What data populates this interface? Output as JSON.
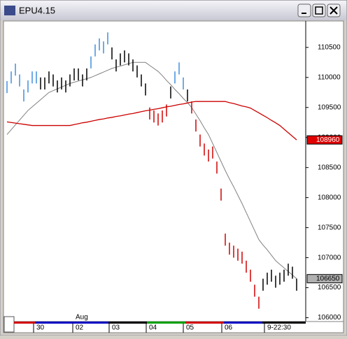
{
  "window": {
    "title": "EPU4.15"
  },
  "chart_data": {
    "type": "ohlc",
    "ylim": [
      105960,
      110940
    ],
    "yticks": [
      106000,
      106500,
      107000,
      107500,
      108000,
      108500,
      109000,
      109500,
      110000,
      110500
    ],
    "time_labels": [
      "30",
      "02",
      "03",
      "04",
      "05",
      "06",
      "9-22:30"
    ],
    "month_label": "Aug",
    "high": [
      109940,
      110100,
      110230,
      110050,
      109800,
      109950,
      110100,
      110100,
      110000,
      110000,
      110100,
      110050,
      109950,
      110000,
      109950,
      110050,
      110150,
      110150,
      110050,
      110150,
      110350,
      110550,
      110650,
      110600,
      110750,
      110500,
      110300,
      110400,
      110450,
      110400,
      110300,
      110200,
      110050,
      109900,
      109500,
      109450,
      109400,
      109450,
      109550,
      109850,
      110100,
      110250,
      110000,
      109800,
      109600,
      109300,
      109050,
      108900,
      108800,
      108850,
      108600,
      108150,
      107400,
      107250,
      107200,
      107150,
      107100,
      106950,
      106800,
      106550,
      106350,
      106650,
      106750,
      106800,
      106700,
      106750,
      106800,
      106900,
      106850,
      106650
    ],
    "low": [
      109740,
      109900,
      110030,
      109850,
      109600,
      109750,
      109900,
      109900,
      109800,
      109800,
      109900,
      109850,
      109750,
      109800,
      109750,
      109850,
      109950,
      109950,
      109850,
      109950,
      110150,
      110350,
      110450,
      110400,
      110550,
      110300,
      110100,
      110200,
      110250,
      110200,
      110100,
      110000,
      109850,
      109700,
      109300,
      109250,
      109200,
      109250,
      109350,
      109650,
      109900,
      110050,
      109800,
      109600,
      109400,
      109100,
      108850,
      108700,
      108600,
      108650,
      108400,
      107950,
      107200,
      107050,
      107000,
      106950,
      106900,
      106750,
      106600,
      106350,
      106150,
      106450,
      106550,
      106600,
      106500,
      106550,
      106600,
      106700,
      106650,
      106450
    ],
    "bar_colors": [
      "#3f8fdf",
      "#3f8fdf",
      "#3f8fdf",
      "#3f8fdf",
      "#3f8fdf",
      "#3f8fdf",
      "#3f8fdf",
      "#3f8fdf",
      "#000000",
      "#000000",
      "#000000",
      "#000000",
      "#000000",
      "#000000",
      "#000000",
      "#000000",
      "#000000",
      "#000000",
      "#000000",
      "#000000",
      "#3f8fdf",
      "#3f8fdf",
      "#3f8fdf",
      "#3f8fdf",
      "#3f8fdf",
      "#000000",
      "#000000",
      "#000000",
      "#000000",
      "#000000",
      "#000000",
      "#000000",
      "#000000",
      "#000000",
      "#d00000",
      "#d00000",
      "#d00000",
      "#d00000",
      "#d00000",
      "#000000",
      "#3f8fdf",
      "#3f8fdf",
      "#3f8fdf",
      "#000000",
      "#d00000",
      "#d00000",
      "#d00000",
      "#d00000",
      "#d00000",
      "#d00000",
      "#d00000",
      "#d00000",
      "#d00000",
      "#d00000",
      "#d00000",
      "#d00000",
      "#d00000",
      "#d00000",
      "#d00000",
      "#d00000",
      "#d00000",
      "#000000",
      "#000000",
      "#000000",
      "#000000",
      "#000000",
      "#000000",
      "#000000",
      "#000000",
      "#000000"
    ],
    "lines": [
      {
        "color": "#808080",
        "values": [
          109050,
          109130,
          109210,
          109290,
          109370,
          109450,
          109510,
          109570,
          109630,
          109690,
          109750,
          109780,
          109810,
          109840,
          109870,
          109900,
          109920,
          109940,
          109960,
          109980,
          110000,
          110030,
          110060,
          110090,
          110120,
          110150,
          110170,
          110190,
          110210,
          110230,
          110250,
          110250,
          110250,
          110250,
          110200,
          110150,
          110100,
          110030,
          109950,
          109880,
          109800,
          109730,
          109650,
          109580,
          109500,
          109390,
          109280,
          109160,
          109050,
          108900,
          108750,
          108600,
          108450,
          108310,
          108180,
          108040,
          107900,
          107750,
          107600,
          107450,
          107300,
          107210,
          107130,
          107040,
          106950,
          106890,
          106830,
          106770,
          106710,
          106650
        ]
      },
      {
        "color": "#cc0000",
        "values": [
          109260,
          109250,
          109240,
          109230,
          109220,
          109210,
          109200,
          109200,
          109200,
          109200,
          109200,
          109200,
          109200,
          109200,
          109200,
          109200,
          109215,
          109230,
          109245,
          109255,
          109270,
          109285,
          109300,
          109310,
          109325,
          109335,
          109350,
          109360,
          109375,
          109390,
          109400,
          109415,
          109430,
          109445,
          109455,
          109470,
          109480,
          109495,
          109510,
          109520,
          109535,
          109550,
          109560,
          109575,
          109590,
          109600,
          109600,
          109600,
          109600,
          109600,
          109600,
          109600,
          109600,
          109580,
          109565,
          109545,
          109525,
          109510,
          109490,
          109450,
          109410,
          109370,
          109330,
          109285,
          109245,
          109200,
          109140,
          109080,
          109020,
          108960
        ]
      }
    ],
    "markers": [
      {
        "value": 108960,
        "color": "#e00000"
      },
      {
        "value": 106650,
        "color": "#b0b0b0"
      }
    ]
  }
}
